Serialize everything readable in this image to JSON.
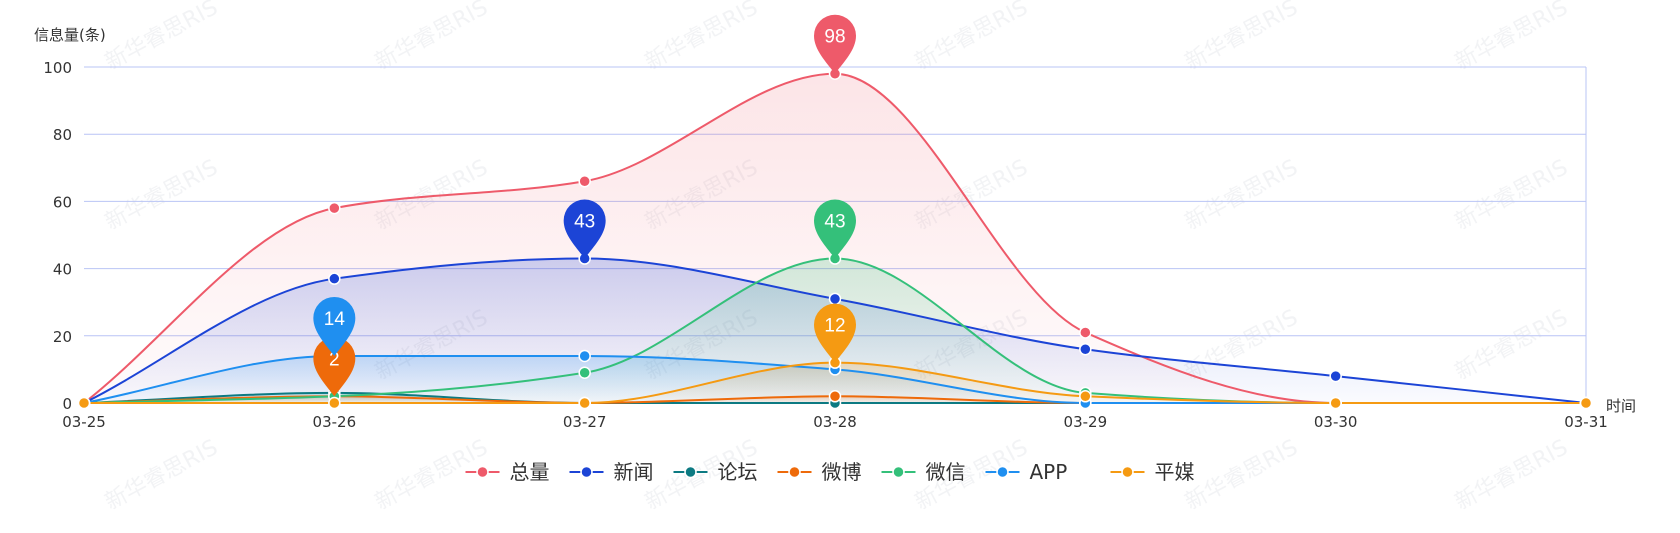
{
  "chart_data": {
    "type": "line",
    "smooth": true,
    "area": true,
    "ylabel": "信息量(条)",
    "xlabel": "时间",
    "categories": [
      "03-25",
      "03-26",
      "03-27",
      "03-28",
      "03-29",
      "03-30",
      "03-31"
    ],
    "ylim": [
      0,
      100
    ],
    "yticks": [
      0,
      20,
      40,
      60,
      80,
      100
    ],
    "grid": true,
    "legend_position": "bottom-center",
    "series": [
      {
        "name": "总量",
        "color": "#ee5a6a",
        "values": [
          0,
          58,
          66,
          98,
          21,
          0,
          0
        ],
        "max_label": "98"
      },
      {
        "name": "新闻",
        "color": "#1c44d6",
        "values": [
          0,
          37,
          43,
          31,
          16,
          8,
          0
        ],
        "max_label": "43"
      },
      {
        "name": "论坛",
        "color": "#0c7a82",
        "values": [
          0,
          3,
          0,
          0,
          0,
          0,
          0
        ]
      },
      {
        "name": "微博",
        "color": "#ee6a0a",
        "values": [
          0,
          2,
          0,
          2,
          0,
          0,
          0
        ],
        "max_label": "2"
      },
      {
        "name": "微信",
        "color": "#34c07a",
        "values": [
          0,
          2,
          9,
          43,
          3,
          0,
          0
        ],
        "max_label": "43"
      },
      {
        "name": "APP",
        "color": "#1f8ff0",
        "values": [
          0,
          14,
          14,
          10,
          0,
          0,
          0
        ],
        "max_label": "14"
      },
      {
        "name": "平媒",
        "color": "#f59a12",
        "values": [
          0,
          0,
          0,
          12,
          2,
          0,
          0
        ],
        "max_label": "12"
      }
    ]
  },
  "watermark": {
    "text": "新华睿思RIS"
  }
}
